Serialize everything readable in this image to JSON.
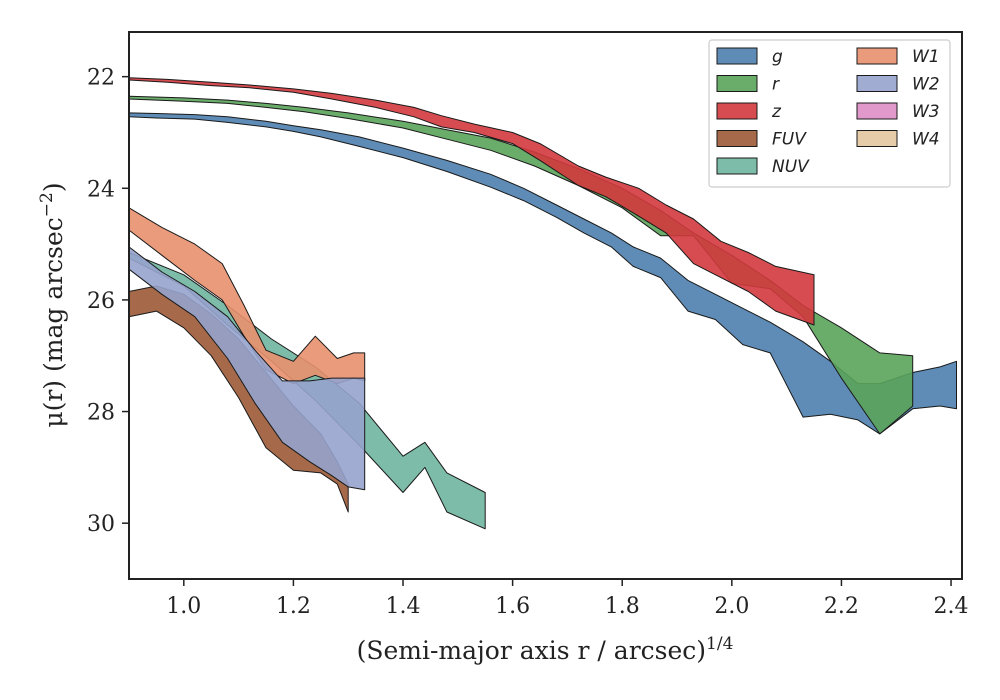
{
  "chart_data": {
    "type": "area",
    "title": "",
    "xlabel": "(Semi-major axis r / arcsec)",
    "xlabel_sup": "1/4",
    "ylabel": "μ(r) (mag arcsec",
    "ylabel_sup": "−2",
    "ylabel_close": ")",
    "xlim": [
      0.9,
      2.42
    ],
    "ylim": [
      31.0,
      21.2
    ],
    "y_inverted": true,
    "xticks": [
      1.0,
      1.2,
      1.4,
      1.6,
      1.8,
      2.0,
      2.2,
      2.4
    ],
    "xtick_labels": [
      "1.0",
      "1.2",
      "1.4",
      "1.6",
      "1.8",
      "2.0",
      "2.2",
      "2.4"
    ],
    "yticks": [
      22,
      24,
      26,
      28,
      30
    ],
    "ytick_labels": [
      "22",
      "24",
      "26",
      "28",
      "30"
    ],
    "grid": false,
    "legend": {
      "placement": "top-right",
      "columns": 2
    },
    "series": [
      {
        "name": "g",
        "color": "#4c7fae",
        "x": [
          0.9,
          0.95,
          1.02,
          1.08,
          1.15,
          1.2,
          1.25,
          1.32,
          1.4,
          1.48,
          1.56,
          1.62,
          1.68,
          1.73,
          1.78,
          1.82,
          1.87,
          1.92,
          1.97,
          2.02,
          2.07,
          2.13,
          2.18,
          2.23,
          2.27,
          2.33,
          2.38,
          2.41
        ],
        "y_upper": [
          22.65,
          22.66,
          22.68,
          22.72,
          22.8,
          22.88,
          22.95,
          23.08,
          23.28,
          23.5,
          23.75,
          24.0,
          24.3,
          24.55,
          24.8,
          25.05,
          25.25,
          25.65,
          25.9,
          26.15,
          26.4,
          26.75,
          27.1,
          27.5,
          27.5,
          27.3,
          27.2,
          27.1
        ],
        "y_lower": [
          22.72,
          22.74,
          22.76,
          22.82,
          22.9,
          22.98,
          23.08,
          23.25,
          23.45,
          23.7,
          23.98,
          24.22,
          24.52,
          24.8,
          25.05,
          25.4,
          25.6,
          26.2,
          26.35,
          26.8,
          26.95,
          28.1,
          28.05,
          28.15,
          28.4,
          27.95,
          27.9,
          27.95
        ]
      },
      {
        "name": "r",
        "color": "#5aa35a",
        "x": [
          0.9,
          1.0,
          1.08,
          1.15,
          1.22,
          1.3,
          1.4,
          1.48,
          1.56,
          1.64,
          1.72,
          1.8,
          1.87,
          1.93,
          2.0,
          2.07,
          2.13,
          2.2,
          2.27,
          2.33
        ],
        "y_upper": [
          22.35,
          22.38,
          22.42,
          22.48,
          22.55,
          22.65,
          22.8,
          22.95,
          23.1,
          23.35,
          23.65,
          24.0,
          24.4,
          24.8,
          25.2,
          25.65,
          26.1,
          26.5,
          26.95,
          27.0
        ],
        "y_lower": [
          22.4,
          22.44,
          22.48,
          22.55,
          22.63,
          22.75,
          22.92,
          23.12,
          23.32,
          23.6,
          23.95,
          24.35,
          24.85,
          24.85,
          25.7,
          25.8,
          26.3,
          27.4,
          28.4,
          27.9
        ]
      },
      {
        "name": "z",
        "color": "#d1393d",
        "x": [
          0.9,
          0.97,
          1.05,
          1.12,
          1.2,
          1.27,
          1.35,
          1.42,
          1.47,
          1.53,
          1.6,
          1.65,
          1.72,
          1.77,
          1.83,
          1.88,
          1.93,
          1.98,
          2.03,
          2.08,
          2.15
        ],
        "y_upper": [
          22.02,
          22.05,
          22.1,
          22.15,
          22.22,
          22.3,
          22.42,
          22.55,
          22.7,
          22.85,
          23.0,
          23.2,
          23.6,
          23.8,
          24.0,
          24.3,
          24.55,
          24.95,
          25.15,
          25.4,
          25.55
        ],
        "y_lower": [
          22.06,
          22.1,
          22.16,
          22.2,
          22.28,
          22.4,
          22.55,
          22.72,
          22.9,
          23.0,
          23.2,
          23.5,
          23.95,
          24.15,
          24.5,
          24.8,
          25.35,
          25.6,
          25.85,
          26.2,
          26.45
        ]
      },
      {
        "name": "FUV",
        "color": "#9c5a37",
        "x": [
          0.9,
          0.95,
          1.0,
          1.05,
          1.1,
          1.15,
          1.2,
          1.25,
          1.28,
          1.3
        ],
        "y_upper": [
          25.85,
          25.75,
          25.9,
          26.25,
          26.7,
          27.3,
          27.9,
          28.4,
          28.9,
          29.3
        ],
        "y_lower": [
          26.3,
          26.2,
          26.5,
          27.0,
          27.75,
          28.65,
          29.05,
          29.1,
          29.3,
          29.8
        ]
      },
      {
        "name": "NUV",
        "color": "#6fb59f",
        "x": [
          0.9,
          1.0,
          1.08,
          1.16,
          1.24,
          1.32,
          1.4,
          1.44,
          1.48,
          1.55
        ],
        "y_upper": [
          25.15,
          25.55,
          26.1,
          26.7,
          27.2,
          27.85,
          28.8,
          28.55,
          29.1,
          29.45
        ],
        "y_lower": [
          25.25,
          25.75,
          26.45,
          27.1,
          27.8,
          28.6,
          29.45,
          29.0,
          29.8,
          30.1
        ]
      },
      {
        "name": "W1",
        "color": "#e8906e",
        "x": [
          0.9,
          0.96,
          1.02,
          1.07,
          1.11,
          1.15,
          1.2,
          1.24,
          1.28,
          1.31,
          1.33
        ],
        "y_upper": [
          24.35,
          24.7,
          25.0,
          25.35,
          26.1,
          26.9,
          27.1,
          26.65,
          27.05,
          26.95,
          26.95
        ],
        "y_lower": [
          24.75,
          25.2,
          25.65,
          26.0,
          26.65,
          27.25,
          27.5,
          27.35,
          27.5,
          27.4,
          27.45
        ]
      },
      {
        "name": "W2",
        "color": "#96a3cc",
        "x": [
          0.9,
          0.96,
          1.02,
          1.08,
          1.13,
          1.18,
          1.23,
          1.27,
          1.3,
          1.33
        ],
        "y_upper": [
          25.05,
          25.5,
          25.85,
          26.3,
          26.9,
          27.45,
          27.45,
          27.4,
          27.4,
          27.4
        ],
        "y_lower": [
          25.45,
          25.9,
          26.3,
          27.05,
          27.85,
          28.55,
          28.9,
          29.15,
          29.35,
          29.4
        ]
      },
      {
        "name": "W3",
        "color": "#dd8ec4",
        "x": [],
        "y_upper": [],
        "y_lower": []
      },
      {
        "name": "W4",
        "color": "#e4c7a0",
        "x": [],
        "y_upper": [],
        "y_lower": []
      }
    ]
  }
}
